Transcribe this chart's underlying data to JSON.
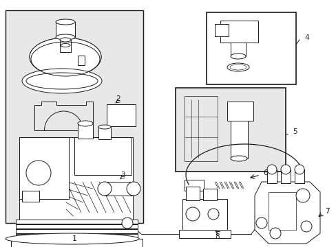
{
  "bg_color": "#ffffff",
  "box1_bg": "#e8e8e8",
  "box4_bg": "#ffffff",
  "box5_bg": "#e8e8e8",
  "lc": "#1a1a1a",
  "lw": 0.7,
  "fig_w": 4.89,
  "fig_h": 3.6,
  "dpi": 100
}
